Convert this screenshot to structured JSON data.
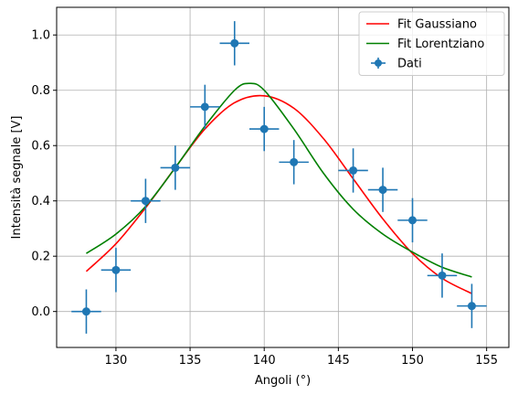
{
  "chart_data": {
    "type": "scatter",
    "title": "",
    "xlabel": "Angoli (°)",
    "ylabel": "Intensità segnale [V]",
    "xlim": [
      126,
      156.5
    ],
    "ylim": [
      -0.13,
      1.1
    ],
    "xticks": [
      130,
      135,
      140,
      145,
      150,
      155
    ],
    "yticks": [
      0.0,
      0.2,
      0.4,
      0.6,
      0.8,
      1.0
    ],
    "grid": true,
    "legend_position": "top-right",
    "series": [
      {
        "name": "Dati",
        "kind": "errorbar",
        "color": "#1f77b4",
        "x": [
          128,
          130,
          132,
          134,
          136,
          138,
          140,
          142,
          146,
          148,
          150,
          152,
          154
        ],
        "y": [
          0.0,
          0.15,
          0.4,
          0.52,
          0.74,
          0.97,
          0.66,
          0.54,
          0.51,
          0.44,
          0.33,
          0.13,
          0.02
        ],
        "xerr": 1.0,
        "yerr": 0.08
      },
      {
        "name": "Fit Gaussiano",
        "kind": "line",
        "color": "#ff0000",
        "x": [
          128,
          130,
          132,
          134,
          136,
          138,
          140,
          142,
          144,
          146,
          148,
          150,
          152,
          154
        ],
        "y": [
          0.145,
          0.245,
          0.375,
          0.52,
          0.66,
          0.755,
          0.78,
          0.735,
          0.625,
          0.48,
          0.335,
          0.21,
          0.12,
          0.065
        ]
      },
      {
        "name": "Fit Lorentziano",
        "kind": "line",
        "color": "#008000",
        "x": [
          128,
          130,
          132,
          134,
          136,
          138,
          139,
          140,
          142,
          144,
          146,
          148,
          150,
          152,
          154
        ],
        "y": [
          0.21,
          0.28,
          0.38,
          0.52,
          0.67,
          0.8,
          0.825,
          0.8,
          0.66,
          0.5,
          0.37,
          0.28,
          0.215,
          0.16,
          0.125
        ]
      }
    ]
  }
}
